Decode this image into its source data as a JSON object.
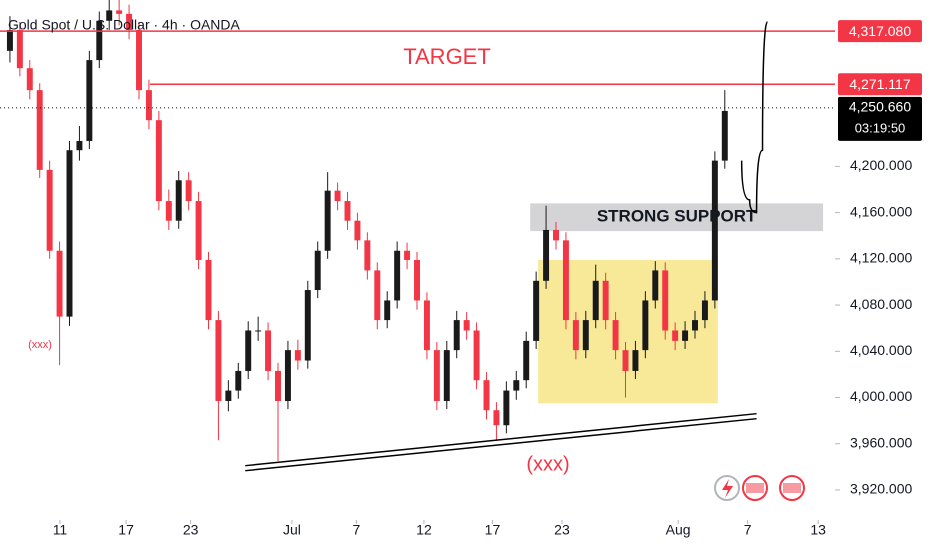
{
  "chart_data": {
    "type": "candlestick",
    "title": "Gold Spot / U.S. Dollar · 4h · OANDA",
    "up_color": "#1a1a1a",
    "down_color": "#f23645",
    "xlim": [
      -1,
      83.1
    ],
    "ylim": [
      3894,
      4344
    ],
    "xticks": [
      {
        "value": 5.04,
        "label": "11"
      },
      {
        "value": 11.7,
        "label": "17"
      },
      {
        "value": 18.2,
        "label": "23"
      },
      {
        "value": 28.4,
        "label": "Jul"
      },
      {
        "value": 34.9,
        "label": "7"
      },
      {
        "value": 41.7,
        "label": "12"
      },
      {
        "value": 48.6,
        "label": "17"
      },
      {
        "value": 55.6,
        "label": "23"
      },
      {
        "value": 67.3,
        "label": "Aug"
      },
      {
        "value": 74.3,
        "label": "7"
      },
      {
        "value": 81.4,
        "label": "13"
      }
    ],
    "yticks": [
      {
        "value": 3920,
        "label": "3,920.000"
      },
      {
        "value": 3960,
        "label": "3,960.000"
      },
      {
        "value": 4000,
        "label": "4,000.000"
      },
      {
        "value": 4040,
        "label": "4,040.000"
      },
      {
        "value": 4080,
        "label": "4,080.000"
      },
      {
        "value": 4120,
        "label": "4,120.000"
      },
      {
        "value": 4160,
        "label": "4,160.000"
      },
      {
        "value": 4200,
        "label": "4,200.000"
      }
    ],
    "candles": [
      [
        4300,
        4330,
        4290,
        4318
      ],
      [
        4318,
        4325,
        4278,
        4285
      ],
      [
        4285,
        4292,
        4258,
        4266
      ],
      [
        4266,
        4272,
        4190,
        4197
      ],
      [
        4197,
        4205,
        4120,
        4127
      ],
      [
        4127,
        4135,
        4028,
        4070
      ],
      [
        4070,
        4222,
        4062,
        4214
      ],
      [
        4214,
        4235,
        4205,
        4222
      ],
      [
        4222,
        4300,
        4215,
        4292
      ],
      [
        4292,
        4334,
        4285,
        4326
      ],
      [
        4326,
        4344,
        4318,
        4335
      ],
      [
        4335,
        4344,
        4322,
        4332
      ],
      [
        4332,
        4340,
        4310,
        4318
      ],
      [
        4318,
        4325,
        4258,
        4266
      ],
      [
        4266,
        4275,
        4232,
        4240
      ],
      [
        4240,
        4248,
        4162,
        4170
      ],
      [
        4170,
        4180,
        4145,
        4153
      ],
      [
        4153,
        4196,
        4146,
        4188
      ],
      [
        4188,
        4195,
        4162,
        4170
      ],
      [
        4170,
        4178,
        4111,
        4119
      ],
      [
        4119,
        4126,
        4059,
        4067
      ],
      [
        4067,
        4075,
        3963,
        3997
      ],
      [
        3997,
        4015,
        3988,
        4006
      ],
      [
        4006,
        4030,
        3999,
        4023
      ],
      [
        4023,
        4066,
        4016,
        4058
      ],
      [
        4058,
        4070,
        4049,
        4058
      ],
      [
        4058,
        4065,
        4015,
        4023
      ],
      [
        4023,
        4030,
        3945,
        3997
      ],
      [
        3997,
        4049,
        3990,
        4041
      ],
      [
        4041,
        4050,
        4024,
        4032
      ],
      [
        4032,
        4101,
        4025,
        4093
      ],
      [
        4093,
        4135,
        4086,
        4127
      ],
      [
        4127,
        4195,
        4120,
        4179
      ],
      [
        4179,
        4186,
        4162,
        4170
      ],
      [
        4170,
        4178,
        4145,
        4153
      ],
      [
        4153,
        4160,
        4128,
        4136
      ],
      [
        4136,
        4143,
        4102,
        4110
      ],
      [
        4110,
        4117,
        4059,
        4067
      ],
      [
        4067,
        4092,
        4060,
        4084
      ],
      [
        4084,
        4135,
        4077,
        4127
      ],
      [
        4127,
        4134,
        4111,
        4119
      ],
      [
        4119,
        4126,
        4076,
        4084
      ],
      [
        4084,
        4091,
        4033,
        4041
      ],
      [
        4041,
        4048,
        3989,
        3997
      ],
      [
        3997,
        4049,
        3990,
        4041
      ],
      [
        4041,
        4075,
        4034,
        4067
      ],
      [
        4067,
        4074,
        4050,
        4058
      ],
      [
        4058,
        4065,
        4007,
        4015
      ],
      [
        4015,
        4022,
        3981,
        3989
      ],
      [
        3989,
        3996,
        3963,
        3976
      ],
      [
        3976,
        4014,
        3969,
        4006
      ],
      [
        4006,
        4023,
        3998,
        4015
      ],
      [
        4015,
        4057,
        4008,
        4049
      ],
      [
        4049,
        4109,
        4042,
        4101
      ],
      [
        4101,
        4166,
        4094,
        4145
      ],
      [
        4145,
        4152,
        4128,
        4136
      ],
      [
        4136,
        4143,
        4059,
        4067
      ],
      [
        4067,
        4074,
        4033,
        4041
      ],
      [
        4041,
        4075,
        4034,
        4067
      ],
      [
        4067,
        4115,
        4060,
        4101
      ],
      [
        4101,
        4108,
        4059,
        4067
      ],
      [
        4067,
        4074,
        4033,
        4041
      ],
      [
        4041,
        4048,
        4000,
        4023
      ],
      [
        4023,
        4049,
        4016,
        4041
      ],
      [
        4041,
        4092,
        4034,
        4084
      ],
      [
        4084,
        4118,
        4077,
        4110
      ],
      [
        4110,
        4117,
        4050,
        4058
      ],
      [
        4058,
        4065,
        4041,
        4049
      ],
      [
        4049,
        4066,
        4042,
        4058
      ],
      [
        4058,
        4075,
        4051,
        4067
      ],
      [
        4067,
        4092,
        4060,
        4084
      ],
      [
        4084,
        4213,
        4077,
        4205
      ],
      [
        4205,
        4266,
        4198,
        4248
      ]
    ],
    "levels": [
      {
        "value": 4317.08,
        "label": "4,317.080",
        "from": -1,
        "color": "#f23645"
      },
      {
        "value": 4271.117,
        "label": "4,271.117",
        "from": 14.1,
        "color": "#f23645"
      }
    ],
    "last_price": {
      "value": 4250.66,
      "label": "4,250.660",
      "countdown": "03:19:50"
    },
    "zones": [
      {
        "label": "STRONG SUPPORT",
        "x": [
          52.4,
          81.9
        ],
        "y": [
          4144,
          4168
        ],
        "color": "#c9c9cc"
      },
      {
        "x": [
          53.2,
          71.3
        ],
        "y": [
          3995,
          4119
        ],
        "color": "#f5e47e"
      }
    ],
    "trendline": {
      "x": [
        23.7,
        75.2
      ],
      "y": [
        3941,
        3986
      ]
    },
    "projection": {
      "x": [
        73.7,
        74.5,
        75.2,
        75.8,
        76.3
      ],
      "y": [
        4205,
        4171,
        4160,
        4214,
        4325
      ]
    },
    "annotations": {
      "target": "TARGET",
      "pattern_left": "(xxx)",
      "pattern_bottom": "(xxx)"
    }
  }
}
